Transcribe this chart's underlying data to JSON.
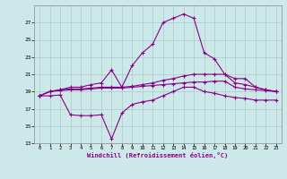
{
  "xlabel": "Windchill (Refroidissement éolien,°C)",
  "bg_color": "#cce8e8",
  "grid_color": "#aacccc",
  "line_color": "#880088",
  "x_hours": [
    0,
    1,
    2,
    3,
    4,
    5,
    6,
    7,
    8,
    9,
    10,
    11,
    12,
    13,
    14,
    15,
    16,
    17,
    18,
    19,
    20,
    21,
    22,
    23
  ],
  "series_top": [
    18.5,
    19.0,
    19.2,
    19.5,
    19.5,
    19.8,
    20.0,
    21.5,
    19.5,
    22.0,
    23.5,
    24.5,
    27.0,
    27.5,
    28.0,
    27.5,
    23.5,
    22.8,
    21.0,
    20.5,
    20.5,
    19.5,
    19.2,
    19.0
  ],
  "series_mid1": [
    18.5,
    19.0,
    19.2,
    19.3,
    19.3,
    19.4,
    19.5,
    19.5,
    19.5,
    19.6,
    19.8,
    20.0,
    20.3,
    20.5,
    20.8,
    21.0,
    21.0,
    21.0,
    21.0,
    20.0,
    19.8,
    19.5,
    19.2,
    19.0
  ],
  "series_mid2": [
    18.5,
    19.0,
    19.1,
    19.2,
    19.2,
    19.3,
    19.4,
    19.4,
    19.4,
    19.5,
    19.6,
    19.7,
    19.8,
    19.9,
    20.0,
    20.1,
    20.1,
    20.2,
    20.2,
    19.5,
    19.3,
    19.2,
    19.1,
    19.0
  ],
  "series_bot": [
    18.5,
    18.5,
    18.6,
    16.3,
    16.2,
    16.2,
    16.3,
    13.5,
    16.5,
    17.5,
    17.8,
    18.0,
    18.5,
    19.0,
    19.5,
    19.5,
    19.0,
    18.8,
    18.5,
    18.3,
    18.2,
    18.0,
    18.0,
    18.0
  ],
  "ylim": [
    13,
    29
  ],
  "yticks": [
    13,
    15,
    17,
    19,
    21,
    23,
    25,
    27
  ],
  "xlim": [
    -0.5,
    23.5
  ],
  "xticks": [
    0,
    1,
    2,
    3,
    4,
    5,
    6,
    7,
    8,
    9,
    10,
    11,
    12,
    13,
    14,
    15,
    16,
    17,
    18,
    19,
    20,
    21,
    22,
    23
  ]
}
